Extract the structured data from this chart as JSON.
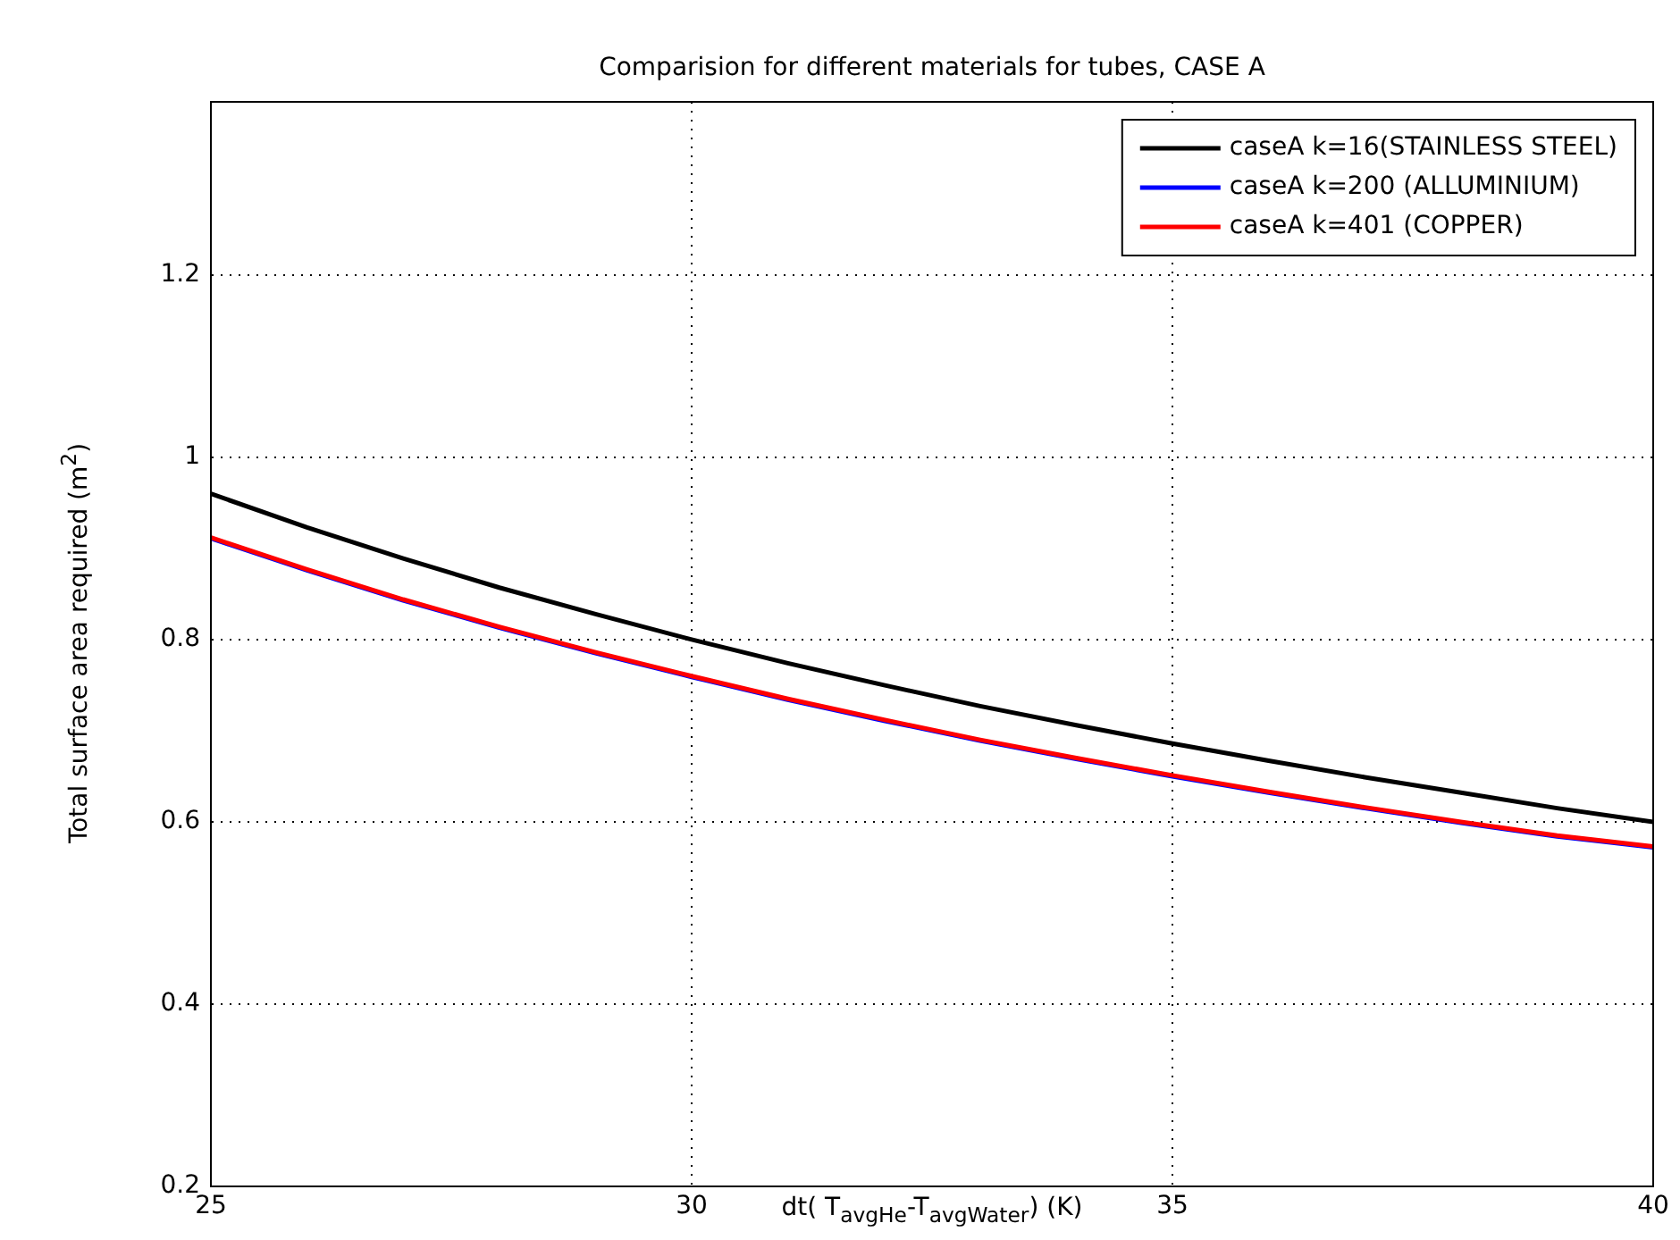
{
  "chart_data": {
    "type": "line",
    "title": "Comparision for different materials for tubes, CASE A",
    "xlabel": "dt( T$_{avgHe}$-T$_{avgWater}$) (K)",
    "ylabel": "Total surface area required (m$^{2}$)",
    "x": [
      25,
      26,
      27,
      28,
      29,
      30,
      31,
      32,
      33,
      34,
      35,
      36,
      37,
      38,
      39,
      40
    ],
    "series": [
      {
        "name": "caseA k=16(STAINLESS STEEL)",
        "color": "#000000",
        "values": [
          0.96,
          0.923,
          0.889,
          0.857,
          0.828,
          0.8,
          0.774,
          0.75,
          0.727,
          0.706,
          0.686,
          0.667,
          0.649,
          0.632,
          0.615,
          0.6
        ]
      },
      {
        "name": "caseA k=200 (ALLUMINIUM)",
        "color": "#0000ff",
        "values": [
          0.911,
          0.876,
          0.843,
          0.813,
          0.785,
          0.759,
          0.734,
          0.711,
          0.689,
          0.669,
          0.65,
          0.632,
          0.615,
          0.599,
          0.584,
          0.572
        ]
      },
      {
        "name": "caseA k=401 (COPPER)",
        "color": "#ff0000",
        "values": [
          0.912,
          0.877,
          0.844,
          0.814,
          0.786,
          0.76,
          0.735,
          0.712,
          0.69,
          0.67,
          0.651,
          0.633,
          0.616,
          0.6,
          0.585,
          0.573
        ]
      }
    ],
    "xlim": [
      25,
      40
    ],
    "xticks": [
      25,
      30,
      35,
      40
    ],
    "ylim": [
      0.2,
      1.39
    ],
    "yticks": [
      0.2,
      0.4,
      0.6,
      0.8,
      1,
      1.2
    ],
    "grid": true,
    "legend": "top right",
    "marker": "none",
    "line_style": "solid"
  }
}
